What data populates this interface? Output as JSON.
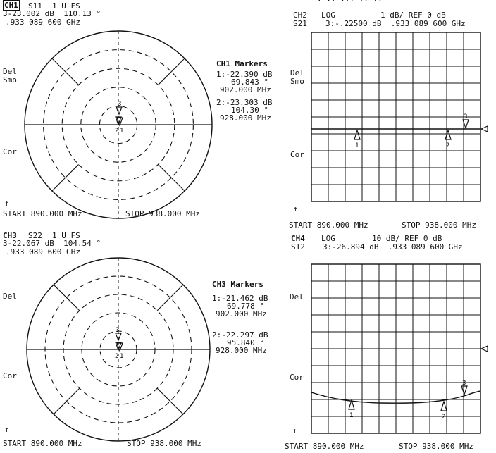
{
  "panels": {
    "ch1": {
      "channel": "CH1",
      "param": "S11",
      "format": "1 U FS",
      "marker_readout_line1": "3-23.002 dB  110.13 °",
      "marker_readout_line2": ".933 089 600 GHz",
      "side_labels": [
        "Del",
        "Smo",
        "Cor"
      ],
      "arrow": "↑",
      "start_label": "START 890.000 MHz",
      "stop_label": "STOP 938.000 MHz",
      "markers_title": "CH1 Markers",
      "markers": [
        {
          "line1": "1:-22.390 dB",
          "line2": "69.843 °",
          "line3": "902.000 MHz"
        },
        {
          "line1": "2:-23.303 dB",
          "line2": "104.30 °",
          "line3": "928.000 MHz"
        }
      ],
      "marker_tags": [
        "1",
        "2",
        "3"
      ]
    },
    "ch2": {
      "header_partial": "· ·· ··· ·· ··",
      "channel": "CH2",
      "format": "LOG",
      "scale": "1 dB/ REF 0 dB",
      "param": "S21",
      "marker_readout": "3:-.22500 dB  .933 089 600 GHz",
      "side_labels": [
        "Del",
        "Smo",
        "Cor"
      ],
      "arrow": "↑",
      "start_label": "START 890.000 MHz",
      "stop_label": "STOP 938.000 MHz",
      "marker_tags": [
        "1",
        "2",
        "3"
      ]
    },
    "ch3": {
      "channel": "CH3",
      "param": "S22",
      "format": "1 U FS",
      "marker_readout_line1": "3-22.067 dB  104.54 °",
      "marker_readout_line2": ".933 089 600 GHz",
      "side_labels": [
        "Del",
        "Cor"
      ],
      "arrow": "↑",
      "start_label": "START 890.000 MHz",
      "stop_label": "STOP 938.000 MHz",
      "markers_title": "CH3 Markers",
      "markers": [
        {
          "line1": "1:-21.462 dB",
          "line2": "69.778 °",
          "line3": "902.000 MHz"
        },
        {
          "line1": "2:-22.297 dB",
          "line2": "95.840 °",
          "line3": "928.000 MHz"
        }
      ],
      "marker_tags": [
        "1",
        "2",
        "3"
      ]
    },
    "ch4": {
      "channel": "CH4",
      "format": "LOG",
      "scale": "10 dB/ REF 0 dB",
      "param": "S12",
      "marker_readout": "3:-26.894 dB  .933 089 600 GHz",
      "side_labels": [
        "Del",
        "Cor"
      ],
      "arrow": "↑",
      "start_label": "START 890.000 MHz",
      "stop_label": "STOP 938.000 MHz",
      "marker_tags": [
        "1",
        "2",
        "3"
      ]
    }
  },
  "chart_data": [
    {
      "type": "scatter",
      "panel": "ch1",
      "chart": "polar",
      "markers": [
        {
          "id": 1,
          "freq_mhz": 902.0,
          "mag_db": -22.39,
          "phase_deg": 69.843
        },
        {
          "id": 2,
          "freq_mhz": 928.0,
          "mag_db": -23.303,
          "phase_deg": 104.3
        },
        {
          "id": 3,
          "freq_mhz": 933.0896,
          "mag_db": -23.002,
          "phase_deg": 110.13
        }
      ],
      "xlim": [
        890,
        938
      ]
    },
    {
      "type": "line",
      "panel": "ch2",
      "chart": "log-magnitude",
      "xlim": [
        890,
        938
      ],
      "ylim": [
        -5,
        5
      ],
      "ref_db": 0,
      "markers": [
        {
          "id": 1,
          "freq_mhz": 902.0
        },
        {
          "id": 2,
          "freq_mhz": 928.0
        },
        {
          "id": 3,
          "freq_mhz": 933.0896,
          "value_db": -0.225
        }
      ],
      "trace": {
        "x": [
          890,
          938
        ],
        "y": [
          -0.2,
          -0.2
        ]
      }
    },
    {
      "type": "scatter",
      "panel": "ch3",
      "chart": "polar",
      "markers": [
        {
          "id": 1,
          "freq_mhz": 902.0,
          "mag_db": -21.462,
          "phase_deg": 69.778
        },
        {
          "id": 2,
          "freq_mhz": 928.0,
          "mag_db": -22.297,
          "phase_deg": 95.84
        },
        {
          "id": 3,
          "freq_mhz": 933.0896,
          "mag_db": -22.067,
          "phase_deg": 104.54
        }
      ],
      "xlim": [
        890,
        938
      ]
    },
    {
      "type": "line",
      "panel": "ch4",
      "chart": "log-magnitude",
      "xlim": [
        890,
        938
      ],
      "ylim": [
        -50,
        50
      ],
      "ref_db": 0,
      "markers": [
        {
          "id": 1,
          "freq_mhz": 902.0
        },
        {
          "id": 2,
          "freq_mhz": 928.0
        },
        {
          "id": 3,
          "freq_mhz": 933.0896,
          "value_db": -26.894
        }
      ],
      "trace": {
        "x": [
          890,
          896,
          902,
          910,
          918,
          926,
          930,
          934,
          938
        ],
        "y": [
          -25,
          -28,
          -29,
          -29.5,
          -29.5,
          -29,
          -28.5,
          -27,
          -26
        ]
      }
    }
  ]
}
